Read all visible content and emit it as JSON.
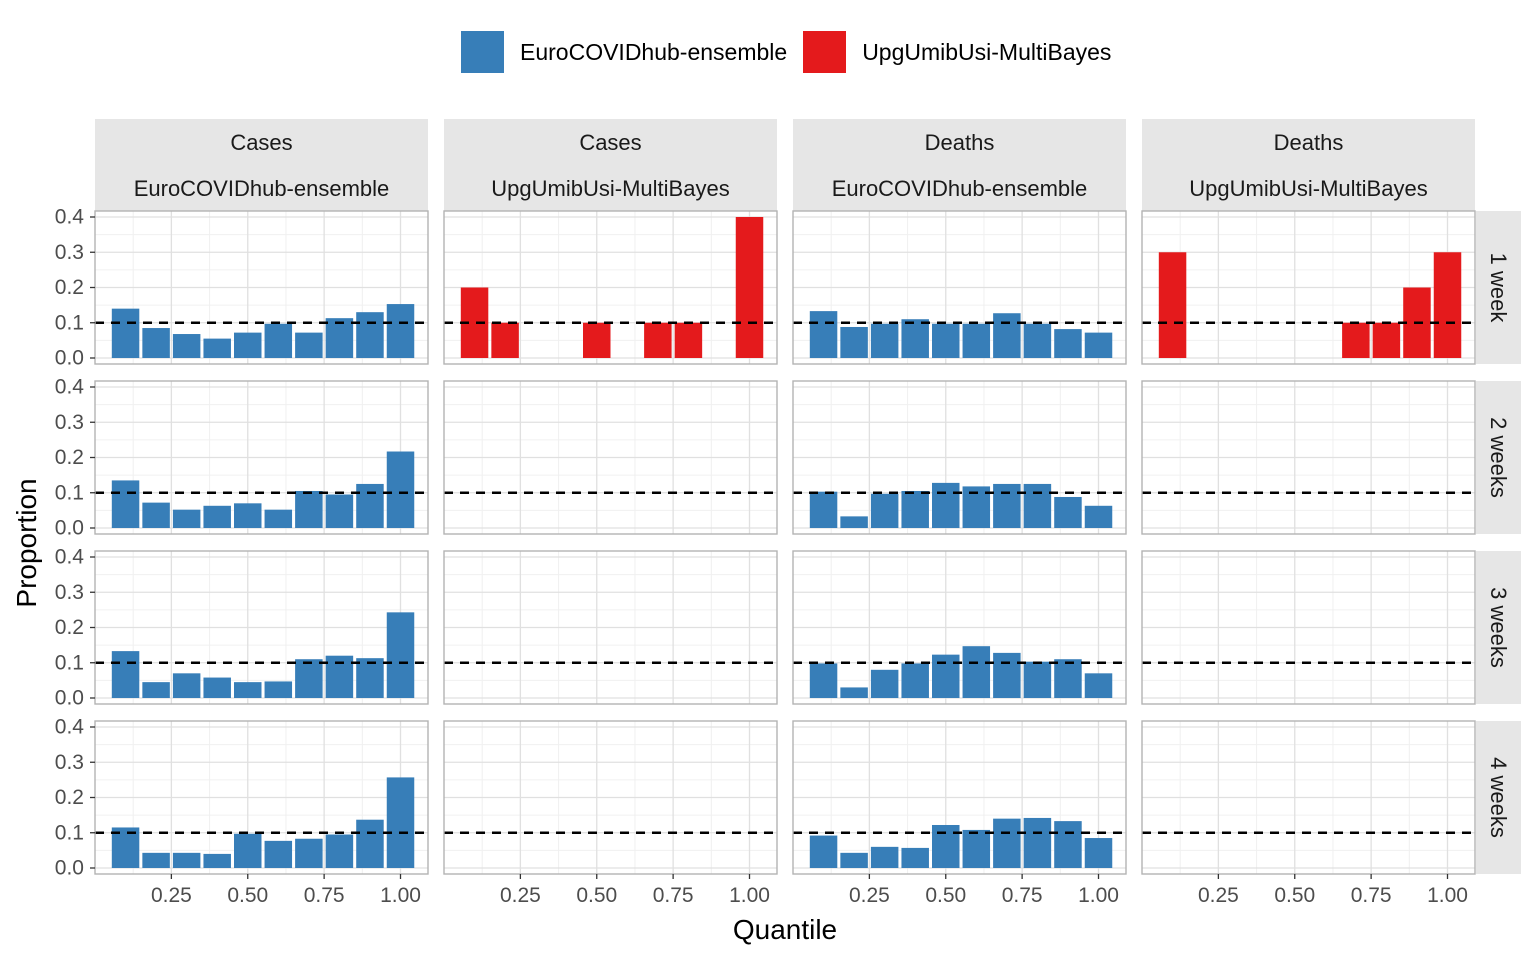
{
  "legend": {
    "items": [
      {
        "label": "EuroCOVIDhub-ensemble",
        "color": "#377EB8"
      },
      {
        "label": "UpgUmibUsi-MultiBayes",
        "color": "#E41A1C"
      }
    ]
  },
  "chart_data": {
    "type": "bar",
    "xlabel": "Quantile",
    "ylabel": "Proportion",
    "xlim": [
      0.0,
      1.09
    ],
    "ylim": [
      0.0,
      0.4
    ],
    "x_ticks": [
      "0.25",
      "0.50",
      "0.75",
      "1.00"
    ],
    "y_ticks": [
      "0.0",
      "0.1",
      "0.2",
      "0.3",
      "0.4"
    ],
    "reference_line": {
      "y": 0.1,
      "style": "dashed"
    },
    "bin_centers": [
      0.1,
      0.2,
      0.3,
      0.4,
      0.5,
      0.6,
      0.7,
      0.8,
      0.9,
      1.0
    ],
    "grid": true,
    "legend_position": "top",
    "column_facets": [
      {
        "top": "Cases",
        "bottom": "EuroCOVIDhub-ensemble",
        "model": "EuroCOVIDhub-ensemble"
      },
      {
        "top": "Cases",
        "bottom": "UpgUmibUsi-MultiBayes",
        "model": "UpgUmibUsi-MultiBayes"
      },
      {
        "top": "Deaths",
        "bottom": "EuroCOVIDhub-ensemble",
        "model": "EuroCOVIDhub-ensemble"
      },
      {
        "top": "Deaths",
        "bottom": "UpgUmibUsi-MultiBayes",
        "model": "UpgUmibUsi-MultiBayes"
      }
    ],
    "row_facets": [
      "1 week",
      "2 weeks",
      "3 weeks",
      "4 weeks"
    ],
    "panels": [
      [
        [
          0.14,
          0.085,
          0.068,
          0.055,
          0.072,
          0.097,
          0.072,
          0.113,
          0.13,
          0.153
        ],
        [
          0.2,
          0.1,
          0,
          0,
          0.1,
          0,
          0.1,
          0.1,
          0,
          0.4
        ],
        [
          0.133,
          0.088,
          0.097,
          0.11,
          0.097,
          0.097,
          0.127,
          0.097,
          0.082,
          0.072
        ],
        [
          0.3,
          0,
          0,
          0,
          0,
          0,
          0.1,
          0.1,
          0.2,
          0.3
        ]
      ],
      [
        [
          0.135,
          0.072,
          0.052,
          0.063,
          0.07,
          0.052,
          0.105,
          0.095,
          0.125,
          0.217
        ],
        [],
        [
          0.103,
          0.033,
          0.097,
          0.105,
          0.128,
          0.118,
          0.125,
          0.125,
          0.088,
          0.063
        ],
        []
      ],
      [
        [
          0.133,
          0.045,
          0.07,
          0.058,
          0.045,
          0.047,
          0.11,
          0.12,
          0.113,
          0.243
        ],
        [],
        [
          0.098,
          0.03,
          0.08,
          0.098,
          0.123,
          0.147,
          0.128,
          0.103,
          0.11,
          0.07
        ],
        []
      ],
      [
        [
          0.115,
          0.043,
          0.043,
          0.04,
          0.097,
          0.077,
          0.083,
          0.095,
          0.137,
          0.257
        ],
        [],
        [
          0.092,
          0.043,
          0.06,
          0.057,
          0.122,
          0.108,
          0.14,
          0.142,
          0.133,
          0.085
        ],
        []
      ]
    ]
  }
}
